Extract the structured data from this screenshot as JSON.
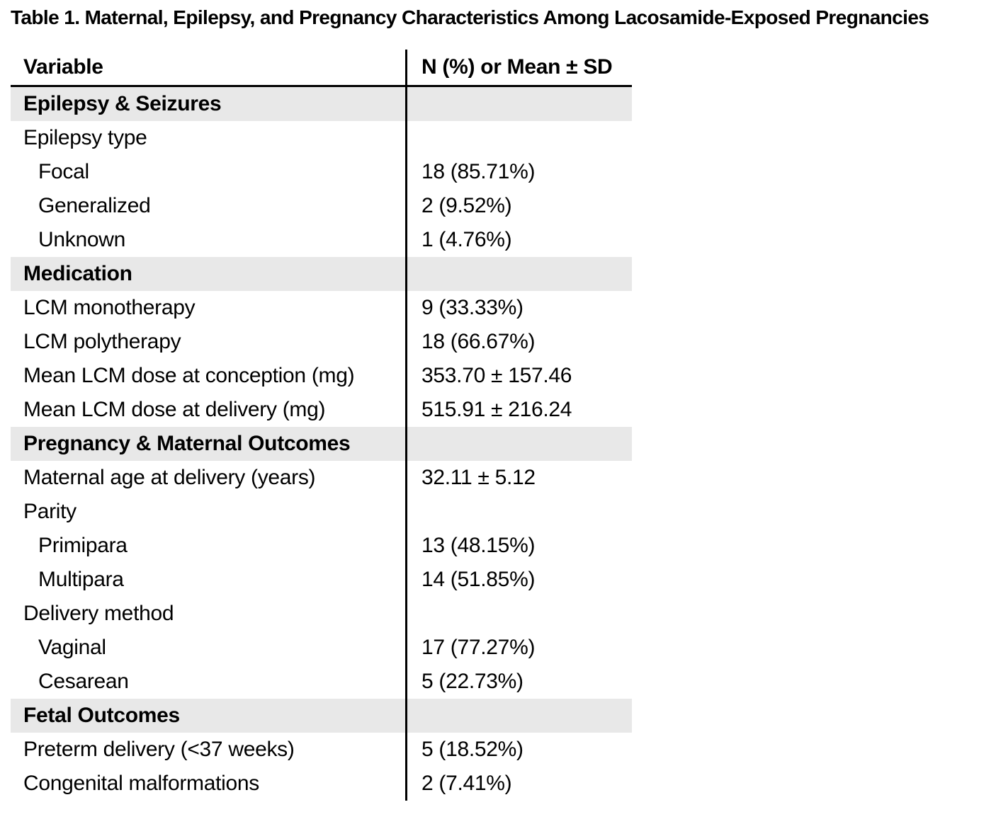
{
  "title": "Table 1. Maternal, Epilepsy, and Pregnancy Characteristics Among Lacosamide-Exposed Pregnancies",
  "table": {
    "columns": [
      "Variable",
      "N (%) or Mean ± SD"
    ],
    "rows": [
      {
        "type": "section",
        "label": "Epilepsy & Seizures",
        "value": ""
      },
      {
        "type": "group",
        "label": "Epilepsy type",
        "value": ""
      },
      {
        "type": "sub",
        "label": "Focal",
        "value": "18 (85.71%)"
      },
      {
        "type": "sub",
        "label": "Generalized",
        "value": "2 (9.52%)"
      },
      {
        "type": "sub",
        "label": "Unknown",
        "value": "1 (4.76%)"
      },
      {
        "type": "section",
        "label": "Medication",
        "value": ""
      },
      {
        "type": "item",
        "label": "LCM monotherapy",
        "value": "9 (33.33%)"
      },
      {
        "type": "item",
        "label": "LCM polytherapy",
        "value": "18 (66.67%)"
      },
      {
        "type": "item",
        "label": "Mean LCM dose at conception (mg)",
        "value": "353.70 ± 157.46"
      },
      {
        "type": "item",
        "label": "Mean LCM dose at delivery (mg)",
        "value": "515.91 ± 216.24"
      },
      {
        "type": "section",
        "label": "Pregnancy & Maternal Outcomes",
        "value": ""
      },
      {
        "type": "item",
        "label": "Maternal age at delivery (years)",
        "value": "32.11 ± 5.12"
      },
      {
        "type": "group",
        "label": "Parity",
        "value": ""
      },
      {
        "type": "sub",
        "label": "Primipara",
        "value": "13 (48.15%)"
      },
      {
        "type": "sub",
        "label": "Multipara",
        "value": "14 (51.85%)"
      },
      {
        "type": "group",
        "label": "Delivery method",
        "value": ""
      },
      {
        "type": "sub",
        "label": "Vaginal",
        "value": "17 (77.27%)"
      },
      {
        "type": "sub",
        "label": "Cesarean",
        "value": "5 (22.73%)"
      },
      {
        "type": "section",
        "label": "Fetal Outcomes",
        "value": ""
      },
      {
        "type": "item",
        "label": "Preterm delivery (<37 weeks)",
        "value": "5 (18.52%)"
      },
      {
        "type": "item",
        "label": "Congenital malformations",
        "value": "2 (7.41%)"
      }
    ]
  },
  "colors": {
    "section_bg": "#e8e8e8",
    "rule": "#000000",
    "text": "#000000",
    "background": "#ffffff"
  }
}
